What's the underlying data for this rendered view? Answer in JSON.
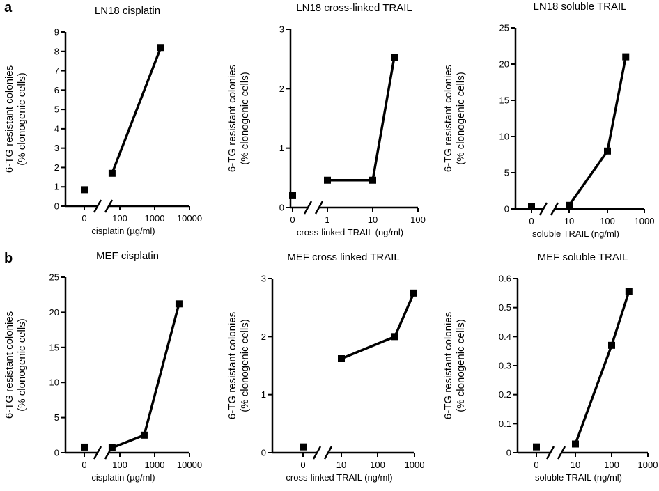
{
  "panels": [
    {
      "letter": "a"
    },
    {
      "letter": "b"
    }
  ],
  "y_label_line1": "6-TG resistant colonies",
  "y_label_line2": "(% clonogenic cells)",
  "chart_data": [
    {
      "type": "line",
      "title": "LN18 cisplatin",
      "xlabel": "cisplatin (µg/ml)",
      "ylabel": "6-TG resistant colonies (% clonogenic cells)",
      "xscale": "log",
      "ylim": [
        0,
        9
      ],
      "yticks": [
        "0",
        "1",
        "2",
        "3",
        "4",
        "5",
        "6",
        "7",
        "8",
        "9"
      ],
      "xticks": [
        "0",
        "100",
        "1000",
        "10000"
      ],
      "zero_point": {
        "x": "0",
        "y": 0.85
      },
      "series": [
        {
          "x": [
            60,
            1500
          ],
          "y": [
            1.7,
            8.2
          ]
        }
      ]
    },
    {
      "type": "line",
      "title": "LN18 cross-linked TRAIL",
      "xlabel": "cross-linked TRAIL (ng/ml)",
      "ylabel": "6-TG resistant colonies (% clonogenic cells)",
      "xscale": "log",
      "ylim": [
        0,
        3
      ],
      "yticks": [
        "0",
        "1",
        "2",
        "3"
      ],
      "xticks": [
        "0",
        "1",
        "10",
        "100"
      ],
      "zero_point": {
        "x": "0",
        "y": 0.2
      },
      "series": [
        {
          "x": [
            1,
            10,
            30
          ],
          "y": [
            0.46,
            0.46,
            2.53
          ]
        }
      ]
    },
    {
      "type": "line",
      "title": "LN18 soluble TRAIL",
      "xlabel": "soluble TRAIL (ng/ml)",
      "ylabel": "6-TG resistant colonies (% clonogenic cells)",
      "xscale": "log",
      "ylim": [
        0,
        25
      ],
      "yticks": [
        "0",
        "5",
        "10",
        "15",
        "20",
        "25"
      ],
      "xticks": [
        "0",
        "10",
        "100",
        "1000"
      ],
      "zero_point": {
        "x": "0",
        "y": 0.3
      },
      "series": [
        {
          "x": [
            10,
            100,
            300
          ],
          "y": [
            0.5,
            8.0,
            21.0
          ]
        }
      ]
    },
    {
      "type": "line",
      "title": "MEF cisplatin",
      "xlabel": "cisplatin (µg/ml)",
      "ylabel": "6-TG resistant colonies (% clonogenic cells)",
      "xscale": "log",
      "ylim": [
        0,
        25
      ],
      "yticks": [
        "0",
        "5",
        "10",
        "15",
        "20",
        "25"
      ],
      "xticks": [
        "0",
        "100",
        "1000",
        "10000"
      ],
      "zero_point": {
        "x": "0",
        "y": 0.8
      },
      "series": [
        {
          "x": [
            60,
            500,
            5000
          ],
          "y": [
            0.7,
            2.5,
            21.2
          ]
        }
      ]
    },
    {
      "type": "line",
      "title": "MEF cross linked TRAIL",
      "xlabel": "cross-linked TRAIL (ng/ml)",
      "ylabel": "6-TG resistant colonies (% clonogenic cells)",
      "xscale": "log",
      "ylim": [
        0,
        3
      ],
      "yticks": [
        "0",
        "1",
        "2",
        "3"
      ],
      "xticks": [
        "0",
        "10",
        "100",
        "1000"
      ],
      "zero_point": {
        "x": "0",
        "y": 0.1
      },
      "series": [
        {
          "x": [
            10,
            300,
            1000
          ],
          "y": [
            1.62,
            2.0,
            2.75
          ]
        }
      ]
    },
    {
      "type": "line",
      "title": "MEF soluble TRAIL",
      "xlabel": "soluble TRAIL (ng/ml)",
      "ylabel": "6-TG resistant colonies (% clonogenic cells)",
      "xscale": "log",
      "ylim": [
        0,
        0.6
      ],
      "yticks": [
        "0",
        "0.1",
        "0.2",
        "0.3",
        "0.4",
        "0.5",
        "0.6"
      ],
      "xticks": [
        "0",
        "10",
        "100",
        "1000"
      ],
      "zero_point": {
        "x": "0",
        "y": 0.02
      },
      "series": [
        {
          "x": [
            10,
            100,
            300
          ],
          "y": [
            0.03,
            0.37,
            0.555
          ]
        }
      ]
    }
  ]
}
